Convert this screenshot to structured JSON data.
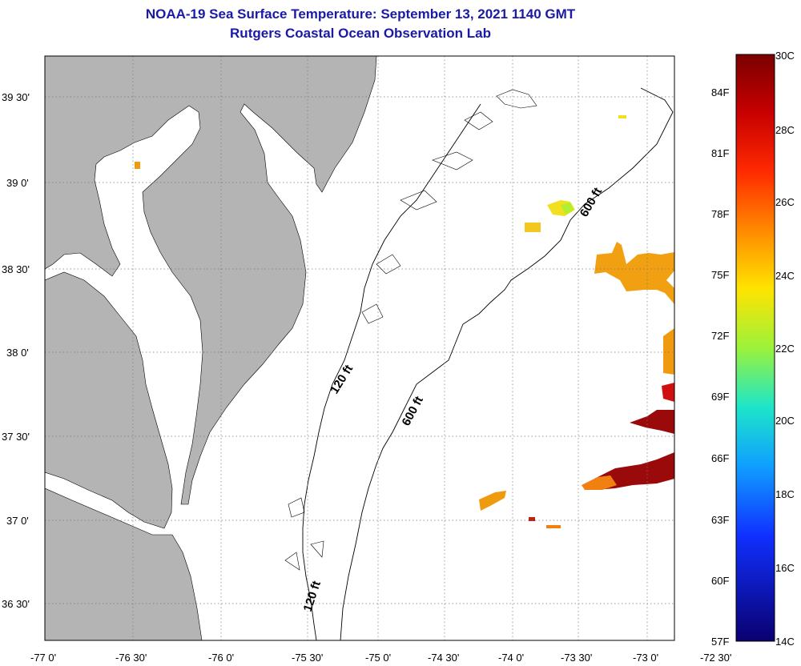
{
  "title": {
    "line1": "NOAA-19 Sea Surface Temperature:  September 13, 2021 1140 GMT",
    "line2": "Rutgers Coastal Ocean Observation Lab"
  },
  "axes": {
    "lat_labels": [
      "39 30'",
      "39 0'",
      "38 30'",
      "38 0'",
      "37 30'",
      "37 0'",
      "36 30'"
    ],
    "lon_labels": [
      "-77 0'",
      "-76 30'",
      "-76 0'",
      "-75 30'",
      "-75 0'",
      "-74 30'",
      "-74 0'",
      "-73 30'",
      "-73 0'",
      "-72 30'"
    ]
  },
  "contours": {
    "label_120": "120 ft",
    "label_600": "600 ft"
  },
  "colorbar": {
    "fahrenheit_labels": [
      "84F",
      "81F",
      "78F",
      "75F",
      "72F",
      "69F",
      "66F",
      "63F",
      "60F",
      "57F"
    ],
    "celsius_labels": [
      "30C",
      "28C",
      "26C",
      "24C",
      "22C",
      "20C",
      "18C",
      "16C",
      "14C"
    ]
  },
  "colors": {
    "land": "#b4b4b4",
    "water": "#ffffff",
    "title": "#1a1aa6",
    "sst_warm": "#9b0a0a",
    "sst_orange": "#f09a10",
    "sst_yellow": "#f2e020",
    "sst_green": "#b4ee30"
  }
}
